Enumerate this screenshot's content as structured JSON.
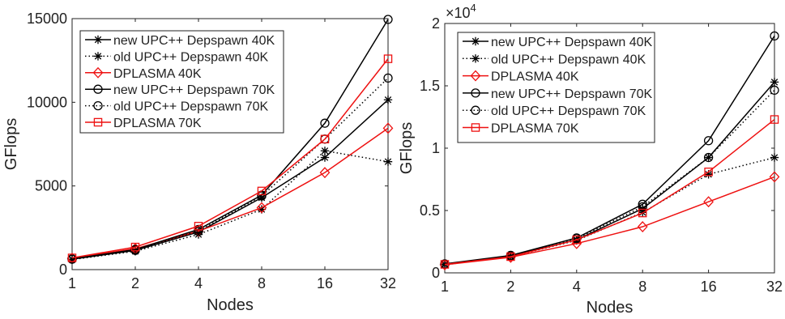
{
  "chart_data": [
    {
      "type": "line",
      "title": "",
      "xlabel": "Nodes",
      "ylabel": "GFlops",
      "x": [
        1,
        2,
        4,
        8,
        16,
        32
      ],
      "x_tick_labels": [
        "1",
        "2",
        "4",
        "8",
        "16",
        "32"
      ],
      "xscale": "log2",
      "ylim": [
        0,
        15000
      ],
      "y_ticks": [
        0,
        5000,
        10000,
        15000
      ],
      "y_tick_labels": [
        "0",
        "5000",
        "10000",
        "15000"
      ],
      "grid": false,
      "legend_position": "top-left",
      "series": [
        {
          "name": "new UPC++ Depspawn 40K",
          "color": "#000000",
          "dash": "solid",
          "marker": "star",
          "values": [
            620,
            1150,
            2250,
            4300,
            6700,
            10150
          ]
        },
        {
          "name": "old UPC++ Depspawn 40K",
          "color": "#000000",
          "dash": "dotted",
          "marker": "star",
          "values": [
            600,
            1100,
            2100,
            3600,
            7100,
            6450
          ]
        },
        {
          "name": "DPLASMA 40K",
          "color": "#ee1111",
          "dash": "solid",
          "marker": "diamond",
          "values": [
            680,
            1250,
            2300,
            3700,
            5800,
            8450
          ]
        },
        {
          "name": "new UPC++ Depspawn 70K",
          "color": "#000000",
          "dash": "solid",
          "marker": "circle",
          "values": [
            640,
            1200,
            2400,
            4450,
            8750,
            14950
          ]
        },
        {
          "name": "old UPC++ Depspawn 70K",
          "color": "#000000",
          "dash": "dotted",
          "marker": "circle",
          "values": [
            620,
            1150,
            2300,
            4400,
            7800,
            11450
          ]
        },
        {
          "name": "DPLASMA 70K",
          "color": "#ee1111",
          "dash": "solid",
          "marker": "square",
          "values": [
            700,
            1350,
            2600,
            4700,
            7800,
            12600
          ]
        }
      ]
    },
    {
      "type": "line",
      "title": "",
      "xlabel": "Nodes",
      "ylabel": "GFlops",
      "x": [
        1,
        2,
        4,
        8,
        16,
        32
      ],
      "x_tick_labels": [
        "1",
        "2",
        "4",
        "8",
        "16",
        "32"
      ],
      "xscale": "log2",
      "ylim": [
        0,
        20000
      ],
      "y_ticks": [
        0,
        5000,
        10000,
        15000,
        20000
      ],
      "y_tick_labels": [
        "0",
        "0.5",
        "1",
        "1.5",
        "2"
      ],
      "y_multiplier_base": "×10",
      "y_multiplier_exp": "4",
      "grid": false,
      "legend_position": "top-left",
      "series": [
        {
          "name": "new UPC++ Depspawn 40K",
          "color": "#000000",
          "dash": "solid",
          "marker": "star",
          "values": [
            700,
            1350,
            2650,
            5150,
            9250,
            15300
          ]
        },
        {
          "name": "old UPC++ Depspawn 40K",
          "color": "#000000",
          "dash": "dotted",
          "marker": "star",
          "values": [
            650,
            1300,
            2600,
            4850,
            7900,
            9250
          ]
        },
        {
          "name": "DPLASMA 40K",
          "color": "#ee1111",
          "dash": "solid",
          "marker": "diamond",
          "values": [
            650,
            1250,
            2350,
            3700,
            5700,
            7700
          ]
        },
        {
          "name": "new UPC++ Depspawn 70K",
          "color": "#000000",
          "dash": "solid",
          "marker": "circle",
          "values": [
            720,
            1400,
            2800,
            5500,
            10600,
            19000
          ]
        },
        {
          "name": "old UPC++ Depspawn 70K",
          "color": "#000000",
          "dash": "dotted",
          "marker": "circle",
          "values": [
            700,
            1350,
            2750,
            5300,
            9250,
            14650
          ]
        },
        {
          "name": "DPLASMA 70K",
          "color": "#ee1111",
          "dash": "solid",
          "marker": "square",
          "values": [
            680,
            1300,
            2650,
            4800,
            8100,
            12300
          ]
        }
      ]
    }
  ]
}
